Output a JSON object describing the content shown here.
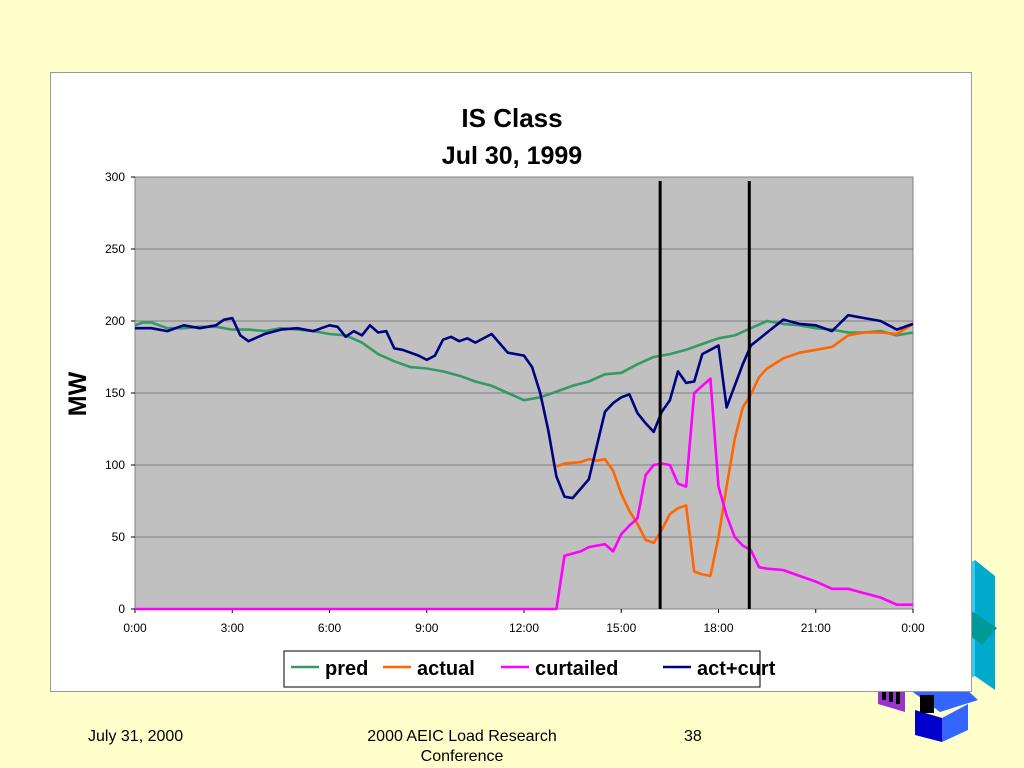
{
  "slide": {
    "footer_date": "July 31, 2000",
    "footer_conference": "2000 AEIC Load Research Conference",
    "page_number": "38",
    "background_color": "#FFFFCC"
  },
  "chart_data": {
    "type": "line",
    "title": "IS Class",
    "subtitle": "Jul 30, 1999",
    "xlabel": "",
    "ylabel": "MW",
    "ylim": [
      0,
      300
    ],
    "yticks": [
      0,
      50,
      100,
      150,
      200,
      250,
      300
    ],
    "xtick_labels": [
      "0:00",
      "3:00",
      "6:00",
      "9:00",
      "12:00",
      "15:00",
      "18:00",
      "21:00",
      "0:00"
    ],
    "xlim_hours": [
      0,
      24
    ],
    "grid": true,
    "plot_background": "#C0C0C0",
    "legend_position": "bottom",
    "vertical_markers_hours": [
      16.2,
      18.95
    ],
    "series": [
      {
        "name": "pred",
        "color": "#339966",
        "x": [
          0,
          0.25,
          0.5,
          0.75,
          1,
          1.5,
          2,
          2.5,
          3,
          3.5,
          4,
          4.5,
          5,
          5.5,
          6,
          6.5,
          7,
          7.5,
          8,
          8.5,
          9,
          9.5,
          10,
          10.5,
          11,
          11.5,
          12,
          12.5,
          13,
          13.5,
          14,
          14.5,
          15,
          15.5,
          16,
          16.5,
          17,
          17.5,
          18,
          18.5,
          19,
          19.5,
          20,
          20.5,
          21,
          21.5,
          22,
          22.5,
          23,
          23.5,
          24
        ],
        "y": [
          197,
          199,
          199,
          197,
          195,
          195,
          196,
          196,
          194,
          194,
          193,
          195,
          194,
          193,
          191,
          190,
          185,
          177,
          172,
          168,
          167,
          165,
          162,
          158,
          155,
          150,
          145,
          147,
          151,
          155,
          158,
          163,
          164,
          170,
          175,
          177,
          180,
          184,
          188,
          190,
          195,
          200,
          198,
          197,
          195,
          194,
          192,
          192,
          193,
          190,
          192
        ]
      },
      {
        "name": "actual",
        "color": "#FF6600",
        "x": [
          13,
          13.25,
          13.75,
          14,
          14.25,
          14.5,
          14.75,
          15,
          15.25,
          15.5,
          15.75,
          16,
          16.25,
          16.5,
          16.75,
          17,
          17.25,
          17.5,
          17.75,
          18,
          18.25,
          18.5,
          18.75,
          19,
          19.25,
          19.5,
          20,
          20.5,
          21,
          21.5,
          22,
          22.5,
          23,
          23.5,
          24
        ],
        "y": [
          99,
          101,
          102,
          104,
          103,
          104,
          96,
          80,
          68,
          59,
          48,
          46,
          55,
          66,
          70,
          72,
          26,
          24,
          23,
          50,
          85,
          118,
          140,
          149,
          161,
          167,
          174,
          178,
          180,
          182,
          190,
          192,
          192,
          191,
          198
        ]
      },
      {
        "name": "curtailed",
        "color": "#FF00FF",
        "x": [
          0,
          13,
          13.25,
          13.75,
          14,
          14.25,
          14.5,
          14.75,
          15,
          15.25,
          15.5,
          15.75,
          16,
          16.25,
          16.5,
          16.75,
          17,
          17.25,
          17.5,
          17.75,
          18,
          18.25,
          18.5,
          18.75,
          19,
          19.25,
          19.5,
          20,
          20.5,
          21,
          21.5,
          22,
          22.5,
          23,
          23.5,
          24
        ],
        "y": [
          0,
          0,
          37,
          40,
          43,
          44,
          45,
          40,
          52,
          58,
          63,
          93,
          100,
          101,
          100,
          87,
          85,
          150,
          155,
          160,
          85,
          65,
          50,
          44,
          41,
          29,
          28,
          27,
          23,
          19,
          14,
          14,
          11,
          8,
          3,
          3
        ]
      },
      {
        "name": "act+curt",
        "color": "#000080",
        "x": [
          0,
          0.5,
          1,
          1.5,
          2,
          2.5,
          2.75,
          3,
          3.25,
          3.5,
          4,
          4.5,
          5,
          5.5,
          5.75,
          6,
          6.25,
          6.5,
          6.75,
          7,
          7.25,
          7.5,
          7.75,
          8,
          8.25,
          8.5,
          8.75,
          9,
          9.25,
          9.5,
          9.75,
          10,
          10.25,
          10.5,
          11,
          11.5,
          12,
          12.25,
          12.5,
          12.75,
          13,
          13.25,
          13.5,
          14,
          14.5,
          14.75,
          15,
          15.25,
          15.5,
          15.75,
          16,
          16.25,
          16.5,
          16.75,
          17,
          17.25,
          17.5,
          17.75,
          18,
          18.25,
          18.5,
          18.75,
          19,
          19.5,
          20,
          20.5,
          21,
          21.5,
          22,
          22.5,
          23,
          23.5,
          24
        ],
        "y": [
          195,
          195,
          193,
          197,
          195,
          197,
          201,
          202,
          190,
          186,
          191,
          194,
          195,
          193,
          195,
          197,
          196,
          189,
          193,
          190,
          197,
          192,
          193,
          181,
          180,
          178,
          176,
          173,
          176,
          187,
          189,
          186,
          188,
          185,
          191,
          178,
          176,
          168,
          150,
          124,
          92,
          78,
          77,
          90,
          137,
          143,
          147,
          149,
          136,
          129,
          123,
          137,
          145,
          165,
          157,
          158,
          177,
          180,
          183,
          140,
          155,
          170,
          183,
          192,
          201,
          198,
          197,
          193,
          204,
          202,
          200,
          194,
          198
        ]
      }
    ]
  }
}
